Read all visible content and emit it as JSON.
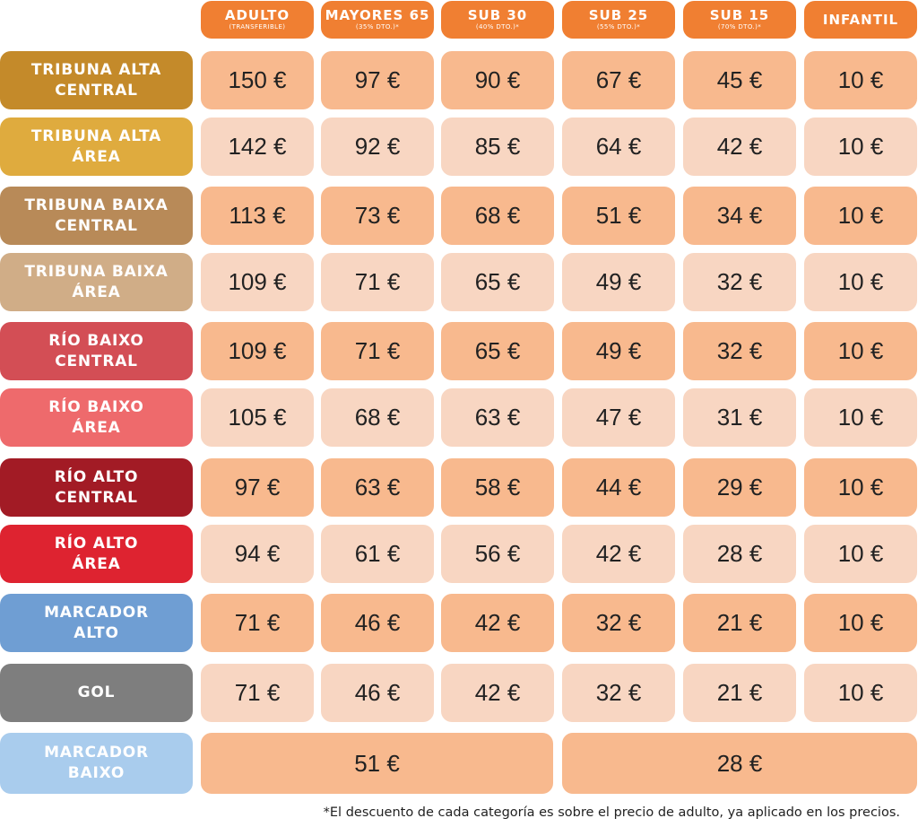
{
  "headers": [
    {
      "title": "ADULTO",
      "sub": "(TRANSFERIBLE)"
    },
    {
      "title": "MAYORES 65",
      "sub": "(35% DTO.)*"
    },
    {
      "title": "SUB 30",
      "sub": "(40% DTO.)*"
    },
    {
      "title": "SUB 25",
      "sub": "(55% DTO.)*"
    },
    {
      "title": "SUB 15",
      "sub": "(70% DTO.)*"
    },
    {
      "title": "INFANTIL",
      "sub": ""
    }
  ],
  "zones": [
    {
      "line1": "TRIBUNA ALTA",
      "line2": "CENTRAL",
      "color": "#c48a2a",
      "prices": [
        "150 €",
        "97 €",
        "90 €",
        "67 €",
        "45 €",
        "10 €"
      ]
    },
    {
      "line1": "TRIBUNA ALTA",
      "line2": "ÁREA",
      "color": "#dfab3e",
      "prices": [
        "142 €",
        "92 €",
        "85 €",
        "64 €",
        "42 €",
        "10 €"
      ]
    },
    {
      "line1": "TRIBUNA BAIXA",
      "line2": "CENTRAL",
      "color": "#b88a58",
      "prices": [
        "113 €",
        "73 €",
        "68 €",
        "51 €",
        "34 €",
        "10 €"
      ]
    },
    {
      "line1": "TRIBUNA BAIXA",
      "line2": "ÁREA",
      "color": "#d0ad87",
      "prices": [
        "109 €",
        "71 €",
        "65 €",
        "49 €",
        "32 €",
        "10 €"
      ]
    },
    {
      "line1": "RÍO BAIXO",
      "line2": "CENTRAL",
      "color": "#d34e55",
      "prices": [
        "109 €",
        "71 €",
        "65 €",
        "49 €",
        "32 €",
        "10 €"
      ]
    },
    {
      "line1": "RÍO BAIXO",
      "line2": "ÁREA",
      "color": "#ee6a6c",
      "prices": [
        "105 €",
        "68 €",
        "63 €",
        "47 €",
        "31 €",
        "10 €"
      ]
    },
    {
      "line1": "RÍO ALTO",
      "line2": "CENTRAL",
      "color": "#a21b25",
      "prices": [
        "97 €",
        "63 €",
        "58 €",
        "44 €",
        "29 €",
        "10 €"
      ]
    },
    {
      "line1": "RÍO ALTO",
      "line2": "ÁREA",
      "color": "#de2330",
      "prices": [
        "94 €",
        "61 €",
        "56 €",
        "42 €",
        "28 €",
        "10 €"
      ]
    },
    {
      "line1": "MARCADOR",
      "line2": "ALTO",
      "color": "#6f9ed3",
      "prices": [
        "71 €",
        "46 €",
        "42 €",
        "32 €",
        "21 €",
        "10 €"
      ]
    },
    {
      "line1": "GOL",
      "line2": "",
      "color": "#7e7e7e",
      "prices": [
        "71 €",
        "46 €",
        "42 €",
        "32 €",
        "21 €",
        "10 €"
      ]
    }
  ],
  "last_zone": {
    "line1": "MARCADOR",
    "line2": "BAIXO",
    "color": "#a9cced",
    "prices": [
      "51 €",
      "28 €"
    ]
  },
  "footnote": "*El descuento de cada categoría es sobre el precio de adulto, ya aplicado en los precios.",
  "colors": {
    "header": "#f07f32",
    "cell_dark": "#f8b98e",
    "cell_light": "#f8d6c2"
  }
}
